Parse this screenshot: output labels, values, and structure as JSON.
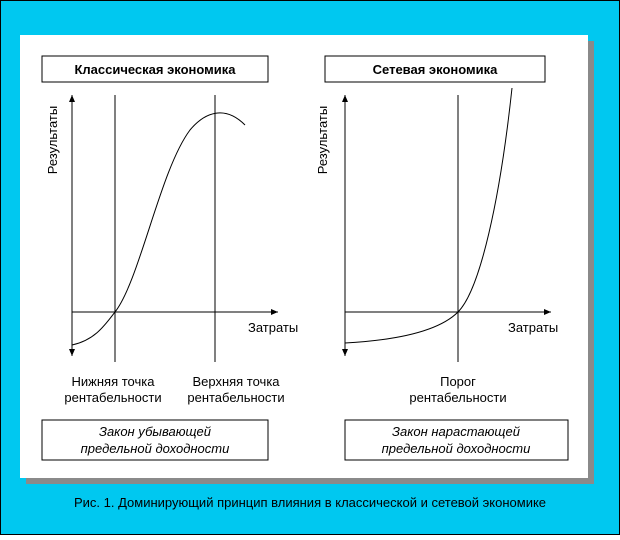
{
  "panels": [
    {
      "title": "Классическая экономика",
      "y_label": "Результаты",
      "x_label": "Затраты",
      "markers": [
        [
          "Нижняя точка",
          "рентабельности"
        ],
        [
          "Верхняя точка",
          "рентабельности"
        ]
      ],
      "law": [
        "Закон убывающей",
        "предельной доходности"
      ]
    },
    {
      "title": "Сетевая экономика",
      "y_label": "Результаты",
      "x_label": "Затраты",
      "markers": [
        [
          "Порог",
          "рентабельности"
        ]
      ],
      "law": [
        "Закон нарастающей",
        "предельной доходности"
      ]
    }
  ],
  "caption": "Рис. 1. Доминирующий принцип влияния в классической и сетевой экономике"
}
